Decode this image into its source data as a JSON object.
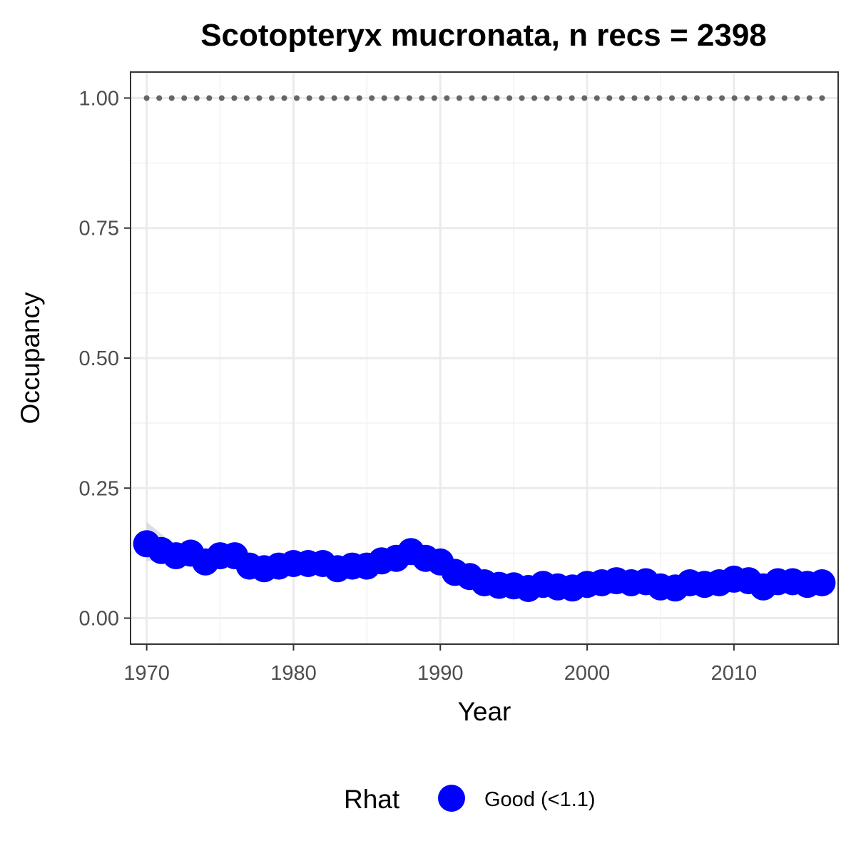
{
  "chart_data": {
    "type": "line",
    "title": "Scotopteryx mucronata, n recs = 2398",
    "xlabel": "Year",
    "ylabel": "Occupancy",
    "xlim": [
      1968.9,
      2017.1
    ],
    "ylim": [
      -0.05,
      1.05
    ],
    "x_ticks": [
      1970,
      1980,
      1990,
      2000,
      2010
    ],
    "x_tick_labels": [
      "1970",
      "1980",
      "1990",
      "2000",
      "2010"
    ],
    "y_ticks": [
      0,
      0.25,
      0.5,
      0.75,
      1.0
    ],
    "y_tick_labels": [
      "0.00",
      "0.25",
      "0.50",
      "0.75",
      "1.00"
    ],
    "grid": true,
    "legend_position": "bottom",
    "legend": {
      "title": "Rhat",
      "entries": [
        {
          "label": "Good (<1.1)",
          "color": "#0000ff"
        }
      ]
    },
    "x": [
      1970,
      1971,
      1972,
      1973,
      1974,
      1975,
      1976,
      1977,
      1978,
      1979,
      1980,
      1981,
      1982,
      1983,
      1984,
      1985,
      1986,
      1987,
      1988,
      1989,
      1990,
      1991,
      1992,
      1993,
      1994,
      1995,
      1996,
      1997,
      1998,
      1999,
      2000,
      2001,
      2002,
      2003,
      2004,
      2005,
      2006,
      2007,
      2008,
      2009,
      2010,
      2011,
      2012,
      2013,
      2014,
      2015,
      2016
    ],
    "series": [
      {
        "name": "Good (<1.1)",
        "role": "occupancy",
        "color": "#0000ff",
        "values": [
          0.143,
          0.13,
          0.12,
          0.125,
          0.108,
          0.12,
          0.12,
          0.1,
          0.095,
          0.1,
          0.105,
          0.105,
          0.105,
          0.095,
          0.1,
          0.1,
          0.11,
          0.115,
          0.128,
          0.115,
          0.108,
          0.088,
          0.08,
          0.068,
          0.063,
          0.062,
          0.057,
          0.065,
          0.06,
          0.058,
          0.065,
          0.068,
          0.072,
          0.068,
          0.07,
          0.06,
          0.058,
          0.068,
          0.065,
          0.068,
          0.075,
          0.072,
          0.06,
          0.07,
          0.07,
          0.065,
          0.068
        ],
        "lower": [
          0.11,
          0.11,
          0.105,
          0.11,
          0.095,
          0.105,
          0.105,
          0.088,
          0.082,
          0.088,
          0.092,
          0.093,
          0.093,
          0.083,
          0.088,
          0.088,
          0.097,
          0.102,
          0.114,
          0.102,
          0.095,
          0.077,
          0.069,
          0.058,
          0.053,
          0.052,
          0.047,
          0.055,
          0.05,
          0.048,
          0.055,
          0.058,
          0.062,
          0.058,
          0.06,
          0.05,
          0.048,
          0.058,
          0.055,
          0.058,
          0.065,
          0.062,
          0.05,
          0.06,
          0.06,
          0.055,
          0.057
        ],
        "upper": [
          0.185,
          0.162,
          0.14,
          0.142,
          0.124,
          0.137,
          0.137,
          0.114,
          0.109,
          0.114,
          0.119,
          0.119,
          0.119,
          0.108,
          0.113,
          0.113,
          0.124,
          0.129,
          0.143,
          0.129,
          0.122,
          0.1,
          0.092,
          0.079,
          0.074,
          0.073,
          0.068,
          0.076,
          0.071,
          0.069,
          0.076,
          0.079,
          0.083,
          0.079,
          0.081,
          0.071,
          0.069,
          0.079,
          0.076,
          0.079,
          0.086,
          0.083,
          0.071,
          0.081,
          0.081,
          0.076,
          0.08
        ]
      },
      {
        "role": "reference",
        "color": "#666666",
        "style": "dotted",
        "values": [
          1,
          1,
          1,
          1,
          1,
          1,
          1,
          1,
          1,
          1,
          1,
          1,
          1,
          1,
          1,
          1,
          1,
          1,
          1,
          1,
          1,
          1,
          1,
          1,
          1,
          1,
          1,
          1,
          1,
          1,
          1,
          1,
          1,
          1,
          1,
          1,
          1,
          1,
          1,
          1,
          1,
          1,
          1,
          1,
          1,
          1,
          1
        ]
      }
    ],
    "colors": {
      "panel_border": "#333333",
      "grid_major": "#ebebeb",
      "grid_minor": "#f2f2f2",
      "ribbon": "#c8c8d8",
      "tick": "#333333"
    }
  }
}
